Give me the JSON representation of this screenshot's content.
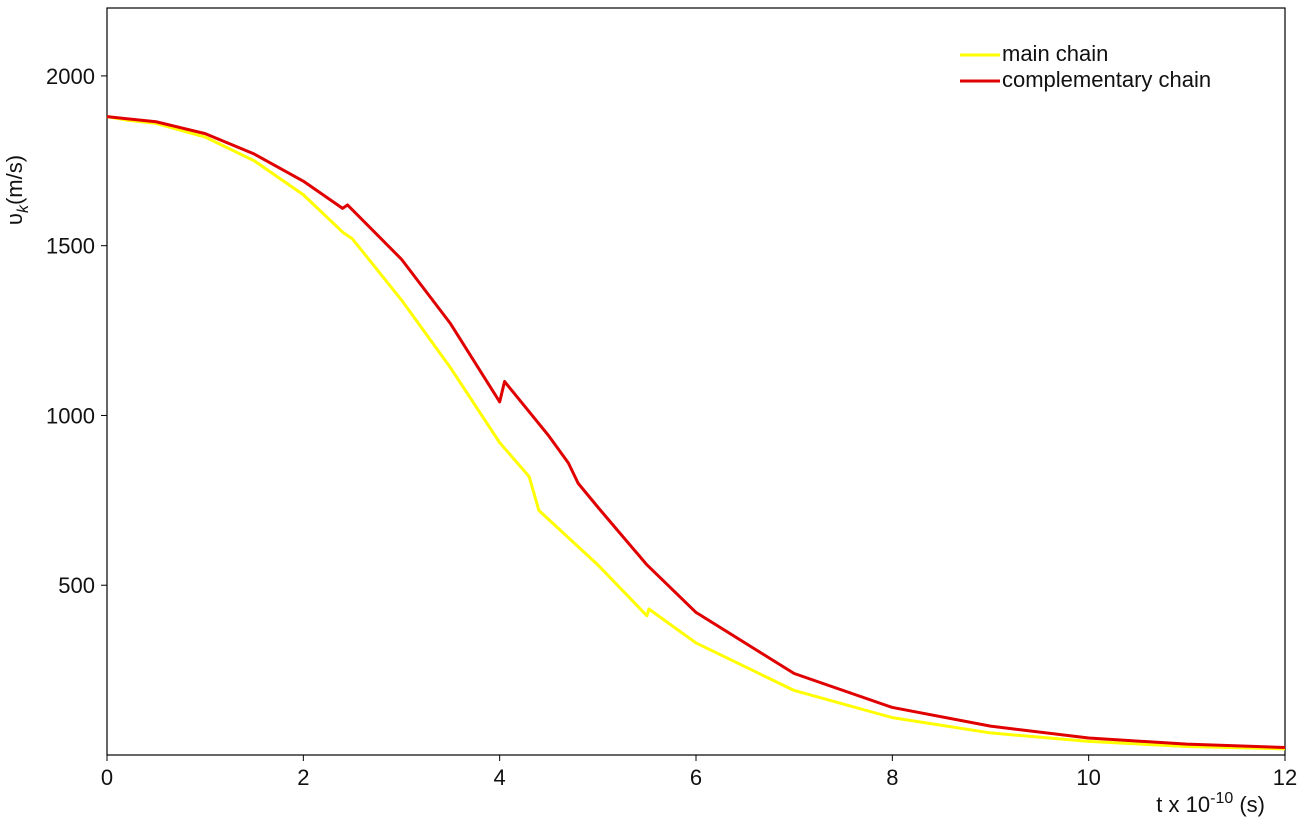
{
  "chart_data": {
    "type": "line",
    "xlabel": {
      "base": "t x 10",
      "superscript": "-10",
      "unit": " (s)"
    },
    "ylabel": {
      "symbol": "υ",
      "subscript": "k",
      "unit": "(m/s)"
    },
    "xlim": [
      0,
      12
    ],
    "xticks": [
      0,
      2,
      4,
      6,
      8,
      10,
      12
    ],
    "ylim": [
      0,
      2200
    ],
    "yticks": [
      500,
      1000,
      1500,
      2000
    ],
    "legend": "top-right",
    "series": [
      {
        "name": "main chain",
        "color": "#ffff00",
        "x": [
          0,
          0.2,
          0.5,
          1,
          1.5,
          2,
          2.4,
          2.5,
          3,
          3.5,
          4,
          4.3,
          4.4,
          5,
          5.5,
          5.52,
          6,
          7,
          8,
          9,
          10,
          11,
          12
        ],
        "values": [
          1880,
          1870,
          1860,
          1820,
          1750,
          1650,
          1540,
          1520,
          1340,
          1140,
          920,
          820,
          720,
          560,
          410,
          430,
          330,
          190,
          110,
          65,
          40,
          25,
          18
        ]
      },
      {
        "name": "complementary chain",
        "color": "#e00000",
        "x": [
          0,
          0.5,
          1,
          1.5,
          2,
          2.4,
          2.45,
          3,
          3.5,
          4,
          4.05,
          4.5,
          4.7,
          4.8,
          5,
          5.5,
          6,
          7,
          8,
          9,
          10,
          11,
          12
        ],
        "values": [
          1880,
          1865,
          1830,
          1770,
          1690,
          1610,
          1620,
          1460,
          1270,
          1040,
          1100,
          940,
          860,
          800,
          730,
          560,
          420,
          240,
          140,
          85,
          50,
          32,
          22
        ]
      }
    ]
  }
}
